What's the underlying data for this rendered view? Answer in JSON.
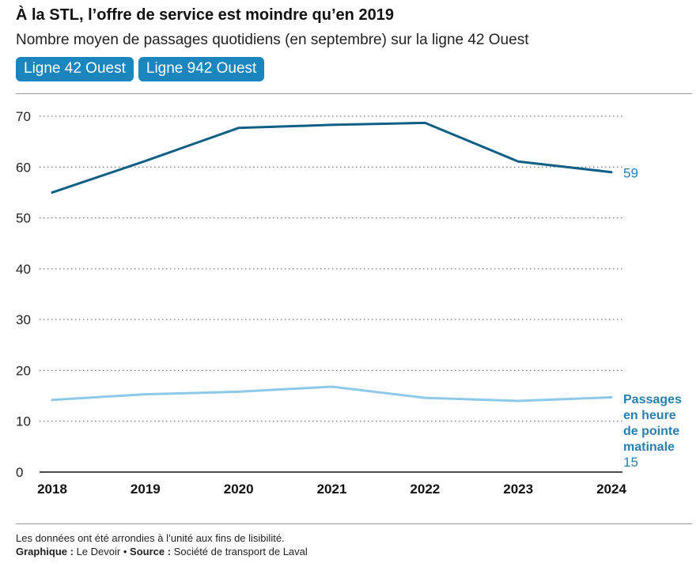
{
  "header": {
    "title": "À la STL, l’offre de service est moindre qu’en 2019",
    "subtitle": "Nombre moyen de passages quotidiens (en septembre) sur la ligne 42 Ouest"
  },
  "tabs": [
    {
      "label": "Ligne 42 Ouest"
    },
    {
      "label": "Ligne 942 Ouest"
    }
  ],
  "chart_data": {
    "type": "line",
    "title": "",
    "xlabel": "",
    "ylabel": "",
    "x": [
      "2018",
      "2019",
      "2020",
      "2021",
      "2022",
      "2023",
      "2024"
    ],
    "ylim": [
      0,
      70
    ],
    "yticks": [
      0,
      10,
      20,
      30,
      40,
      50,
      60,
      70
    ],
    "grid": true,
    "series": [
      {
        "values": [
          55,
          61.2,
          67.7,
          68.3,
          68.7,
          61.1,
          59
        ],
        "color": "#0e5f86",
        "end_label": "59"
      },
      {
        "name": "Passages en heure de pointe matinale",
        "values": [
          14.2,
          15.3,
          15.8,
          16.8,
          14.6,
          14.0,
          14.7
        ],
        "color": "#8ec9ea",
        "end_label": "15"
      }
    ],
    "series_label_lines": [
      "Passages",
      "en heure",
      "de pointe",
      "matinale"
    ],
    "label_color": "#2a7fae"
  },
  "footer": {
    "note": "Les données ont été arrondies à l’unité aux fins de lisibilité.",
    "graphique_label": "Graphique :",
    "graphique_value": "Le Devoir",
    "separator": "•",
    "source_label": "Source :",
    "source_value": "Société de transport de Laval"
  }
}
